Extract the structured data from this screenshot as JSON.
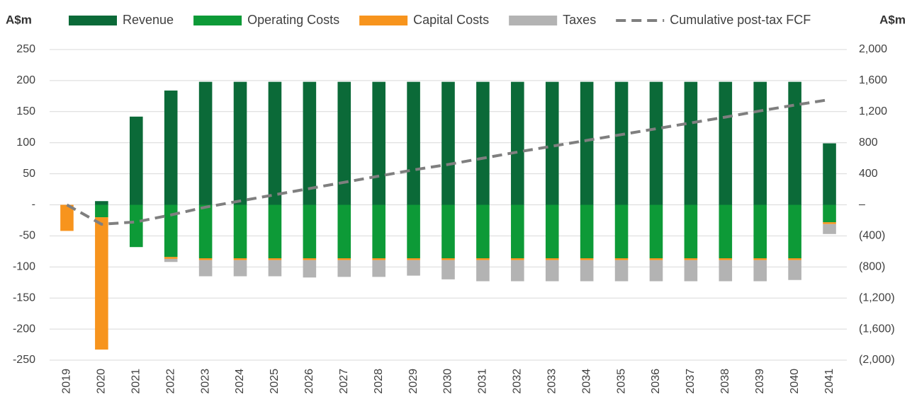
{
  "chart_data": {
    "type": "bar",
    "ylabel": "A$m",
    "y2label": "A$m",
    "categories": [
      "2019",
      "2020",
      "2021",
      "2022",
      "2023",
      "2024",
      "2025",
      "2026",
      "2027",
      "2028",
      "2029",
      "2030",
      "2031",
      "2032",
      "2033",
      "2034",
      "2035",
      "2036",
      "2037",
      "2038",
      "2039",
      "2040",
      "2041"
    ],
    "stacked": true,
    "series": [
      {
        "name": "Revenue",
        "color": "#0b6a38",
        "values": [
          0,
          6,
          142,
          184,
          198,
          198,
          198,
          198,
          198,
          198,
          198,
          198,
          198,
          198,
          198,
          198,
          198,
          198,
          198,
          198,
          198,
          198,
          99
        ]
      },
      {
        "name": "Operating Costs",
        "color": "#0d9a37",
        "values": [
          0,
          -20,
          -68,
          -84,
          -86,
          -86,
          -86,
          -86,
          -86,
          -86,
          -86,
          -86,
          -86,
          -86,
          -86,
          -86,
          -86,
          -86,
          -86,
          -86,
          -86,
          -86,
          -28
        ]
      },
      {
        "name": "Capital Costs",
        "color": "#f7941d",
        "values": [
          -42,
          -213,
          0,
          -3,
          -3,
          -3,
          -3,
          -3,
          -3,
          -3,
          -3,
          -3,
          -3,
          -3,
          -3,
          -3,
          -3,
          -3,
          -3,
          -3,
          -3,
          -3,
          -3
        ]
      },
      {
        "name": "Taxes",
        "color": "#b3b3b3",
        "values": [
          0,
          0,
          0,
          -5,
          -26,
          -26,
          -26,
          -28,
          -27,
          -27,
          -25,
          -31,
          -34,
          -34,
          -34,
          -34,
          -34,
          -34,
          -34,
          -34,
          -34,
          -32,
          -16
        ]
      },
      {
        "name": "Cumulative post-tax FCF",
        "color": "#7f7f7f",
        "type": "line",
        "dashed": true,
        "axis": "y2",
        "values": [
          0,
          -250,
          -220,
          -130,
          -30,
          50,
          130,
          210,
          290,
          370,
          450,
          520,
          600,
          680,
          755,
          830,
          905,
          980,
          1055,
          1130,
          1210,
          1285,
          1355
        ]
      }
    ],
    "ylim": [
      -250,
      250
    ],
    "yticks": [
      250,
      200,
      150,
      100,
      50,
      {
        "value": 0,
        "label": "-"
      },
      -50,
      -100,
      -150,
      -200,
      -250
    ],
    "y2lim": [
      -2000,
      2000
    ],
    "y2ticks": [
      {
        "value": 2000,
        "label": "2,000"
      },
      {
        "value": 1600,
        "label": "1,600"
      },
      {
        "value": 1200,
        "label": "1,200"
      },
      800,
      400,
      {
        "value": 0,
        "label": "–"
      },
      {
        "value": -400,
        "label": "(400)"
      },
      {
        "value": -800,
        "label": "(800)"
      },
      {
        "value": -1200,
        "label": "(1,200)"
      },
      {
        "value": -1600,
        "label": "(1,600)"
      },
      {
        "value": -2000,
        "label": "(2,000)"
      }
    ],
    "grid": true,
    "legend": "top"
  }
}
